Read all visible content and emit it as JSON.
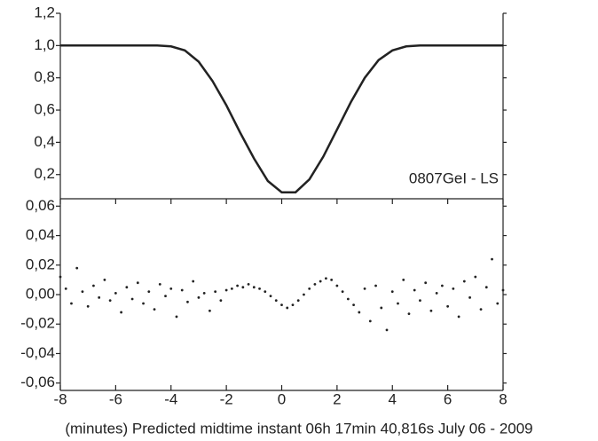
{
  "chart_data": [
    {
      "type": "line",
      "annotation": "0807GeI - LS",
      "x": [
        -8,
        -7.5,
        -7,
        -6.5,
        -6,
        -5.5,
        -5,
        -4.5,
        -4,
        -3.5,
        -3,
        -2.5,
        -2,
        -1.5,
        -1,
        -0.5,
        0,
        0.5,
        1,
        1.5,
        2,
        2.5,
        3,
        3.5,
        4,
        4.5,
        5,
        5.5,
        6,
        6.5,
        7,
        7.5,
        8
      ],
      "values": [
        1.0,
        1.0,
        1.0,
        1.0,
        1.0,
        1.0,
        1.0,
        1.0,
        0.995,
        0.97,
        0.9,
        0.78,
        0.63,
        0.46,
        0.3,
        0.16,
        0.09,
        0.09,
        0.17,
        0.31,
        0.48,
        0.65,
        0.8,
        0.91,
        0.97,
        0.995,
        1.0,
        1.0,
        1.0,
        1.0,
        1.0,
        1.0,
        1.0
      ],
      "color": "#222222",
      "xlim": [
        -8,
        8
      ],
      "ylim": [
        0.05,
        1.2
      ],
      "yticks": [
        {
          "value": 0.2,
          "label": "0,2"
        },
        {
          "value": 0.4,
          "label": "0,4"
        },
        {
          "value": 0.6,
          "label": "0,6"
        },
        {
          "value": 0.8,
          "label": "0,8"
        },
        {
          "value": 1.0,
          "label": "1,0"
        },
        {
          "value": 1.2,
          "label": "1,2"
        }
      ]
    },
    {
      "type": "scatter",
      "x_label": "(minutes) Predicted midtime instant 06h 17min 40,816s July 06 - 2009",
      "x": [
        -8,
        -7.8,
        -7.6,
        -7.4,
        -7.2,
        -7,
        -6.8,
        -6.6,
        -6.4,
        -6.2,
        -6,
        -5.8,
        -5.6,
        -5.4,
        -5.2,
        -5,
        -4.8,
        -4.6,
        -4.4,
        -4.2,
        -4,
        -3.8,
        -3.6,
        -3.4,
        -3.2,
        -3,
        -2.8,
        -2.6,
        -2.4,
        -2.2,
        -2,
        -1.8,
        -1.6,
        -1.4,
        -1.2,
        -1,
        -0.8,
        -0.6,
        -0.4,
        -0.2,
        0,
        0.2,
        0.4,
        0.6,
        0.8,
        1,
        1.2,
        1.4,
        1.6,
        1.8,
        2,
        2.2,
        2.4,
        2.6,
        2.8,
        3,
        3.2,
        3.4,
        3.6,
        3.8,
        4,
        4.2,
        4.4,
        4.6,
        4.8,
        5,
        5.2,
        5.4,
        5.6,
        5.8,
        6,
        6.2,
        6.4,
        6.6,
        6.8,
        7,
        7.2,
        7.4,
        7.6,
        7.8,
        8
      ],
      "values": [
        0.012,
        0.004,
        -0.006,
        0.018,
        0.002,
        -0.008,
        0.006,
        -0.002,
        0.01,
        -0.004,
        0.001,
        -0.012,
        0.005,
        -0.003,
        0.008,
        -0.006,
        0.002,
        -0.01,
        0.007,
        -0.001,
        0.004,
        -0.015,
        0.003,
        -0.005,
        0.009,
        -0.002,
        0.001,
        -0.011,
        0.002,
        -0.004,
        0.003,
        0.004,
        0.006,
        0.005,
        0.007,
        0.005,
        0.004,
        0.002,
        -0.001,
        -0.004,
        -0.007,
        -0.009,
        -0.007,
        -0.004,
        0.0,
        0.004,
        0.007,
        0.009,
        0.011,
        0.01,
        0.006,
        0.002,
        -0.003,
        -0.007,
        -0.012,
        0.004,
        -0.018,
        0.006,
        -0.009,
        -0.024,
        0.002,
        -0.006,
        0.01,
        -0.013,
        0.003,
        -0.004,
        0.008,
        -0.011,
        0.001,
        0.006,
        -0.008,
        0.004,
        -0.015,
        0.009,
        -0.002,
        0.012,
        -0.01,
        0.005,
        0.024,
        -0.006,
        0.003
      ],
      "color": "#222222",
      "xlim": [
        -8,
        8
      ],
      "xticks": [
        -8,
        -6,
        -4,
        -2,
        0,
        2,
        4,
        6,
        8
      ],
      "ylim": [
        -0.065,
        0.065
      ],
      "yticks": [
        {
          "value": -0.06,
          "label": "-0,06"
        },
        {
          "value": -0.04,
          "label": "-0,04"
        },
        {
          "value": -0.02,
          "label": "-0,02"
        },
        {
          "value": 0.0,
          "label": "0,00"
        },
        {
          "value": 0.02,
          "label": "0,02"
        },
        {
          "value": 0.04,
          "label": "0,04"
        },
        {
          "value": 0.06,
          "label": "0,06"
        }
      ]
    }
  ]
}
